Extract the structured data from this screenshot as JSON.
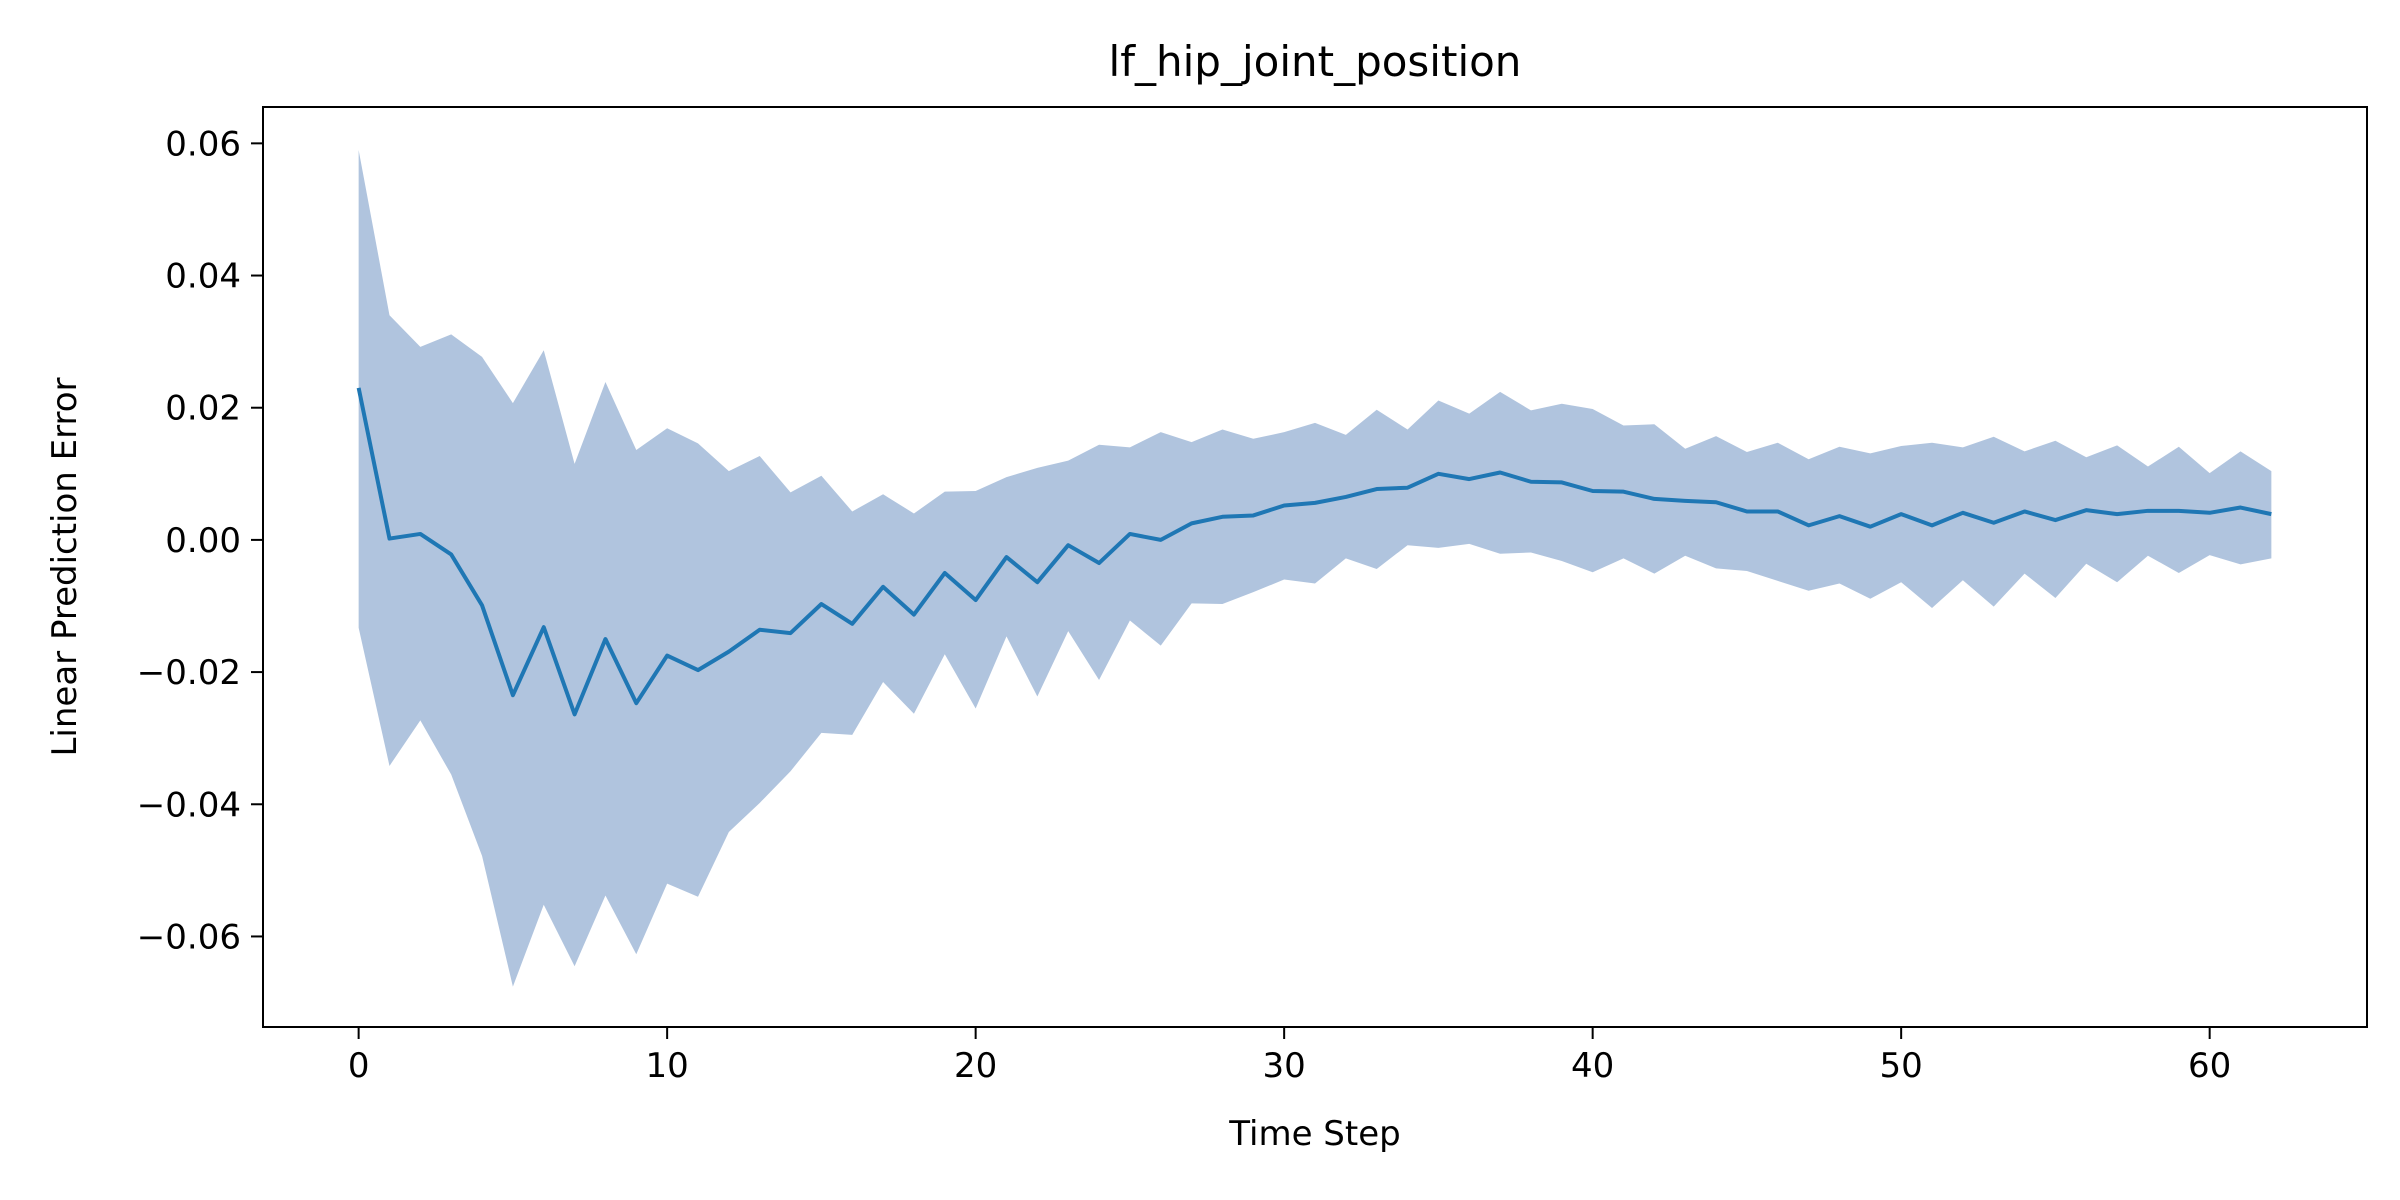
{
  "chart_data": {
    "type": "line",
    "title": "lf_hip_joint_position",
    "xlabel": "Time Step",
    "ylabel": "Linear Prediction Error",
    "xlim": [
      -3.1,
      65.1
    ],
    "ylim": [
      -0.0737,
      0.0655
    ],
    "x_ticks": [
      0,
      10,
      20,
      30,
      40,
      50,
      60
    ],
    "x_tick_labels": [
      "0",
      "10",
      "20",
      "30",
      "40",
      "50",
      "60"
    ],
    "y_ticks": [
      0.06,
      0.04,
      0.02,
      0.0,
      -0.02,
      -0.04,
      -0.06
    ],
    "y_tick_labels": [
      "0.06",
      "0.04",
      "0.02",
      "0.00",
      "−0.02",
      "−0.04",
      "−0.06"
    ],
    "grid": false,
    "line_color": "#1f77b4",
    "band_color": "#b0c4de",
    "series": [
      {
        "x": [
          0,
          1,
          2,
          3,
          4,
          5,
          6,
          7,
          8,
          9,
          10,
          11,
          12,
          13,
          14,
          15,
          16,
          17,
          18,
          19,
          20,
          21,
          22,
          23,
          24,
          25,
          26,
          27,
          28,
          29,
          30,
          31,
          32,
          33,
          34,
          35,
          36,
          37,
          38,
          39,
          40,
          41,
          42,
          43,
          44,
          45,
          46,
          47,
          48,
          49,
          50,
          51,
          52,
          53,
          54,
          55,
          56,
          57,
          58,
          59,
          60,
          61,
          62
        ],
        "mean": [
          0.023,
          0.0002,
          0.0009,
          -0.0022,
          -0.0099,
          -0.0235,
          -0.0132,
          -0.0264,
          -0.015,
          -0.0247,
          -0.0175,
          -0.0197,
          -0.0169,
          -0.0136,
          -0.0141,
          -0.0097,
          -0.0127,
          -0.0071,
          -0.0113,
          -0.005,
          -0.0091,
          -0.0026,
          -0.0064,
          -0.0008,
          -0.0035,
          0.0009,
          0.0,
          0.0025,
          0.0035,
          0.0037,
          0.0052,
          0.0056,
          0.0065,
          0.0077,
          0.0079,
          0.01,
          0.0092,
          0.0102,
          0.0088,
          0.0087,
          0.0074,
          0.0073,
          0.0062,
          0.0059,
          0.0057,
          0.0043,
          0.0043,
          0.0022,
          0.0036,
          0.002,
          0.0039,
          0.0022,
          0.0041,
          0.0026,
          0.0043,
          0.003,
          0.0045,
          0.0039,
          0.0044,
          0.0044,
          0.0041,
          0.0049,
          0.0039
        ],
        "upper": [
          0.059,
          0.034,
          0.0292,
          0.0311,
          0.0277,
          0.0207,
          0.0287,
          0.0115,
          0.0239,
          0.0136,
          0.0169,
          0.0146,
          0.0104,
          0.0127,
          0.0072,
          0.0097,
          0.0043,
          0.0069,
          0.004,
          0.0073,
          0.0074,
          0.0095,
          0.0109,
          0.012,
          0.0144,
          0.014,
          0.0163,
          0.0148,
          0.0167,
          0.0153,
          0.0163,
          0.0177,
          0.0159,
          0.0197,
          0.0167,
          0.0211,
          0.0191,
          0.0224,
          0.0196,
          0.0206,
          0.0198,
          0.0173,
          0.0175,
          0.0138,
          0.0157,
          0.0133,
          0.0147,
          0.0122,
          0.0141,
          0.0131,
          0.0142,
          0.0147,
          0.014,
          0.0156,
          0.0134,
          0.015,
          0.0125,
          0.0143,
          0.0111,
          0.0141,
          0.0101,
          0.0134,
          0.0104
        ],
        "lower": [
          -0.0133,
          -0.0342,
          -0.0273,
          -0.0355,
          -0.0478,
          -0.0676,
          -0.0552,
          -0.0645,
          -0.0538,
          -0.0627,
          -0.052,
          -0.054,
          -0.0442,
          -0.0398,
          -0.035,
          -0.0292,
          -0.0295,
          -0.0215,
          -0.0263,
          -0.0173,
          -0.0255,
          -0.0146,
          -0.0237,
          -0.0138,
          -0.0212,
          -0.0122,
          -0.016,
          -0.0096,
          -0.0097,
          -0.0079,
          -0.006,
          -0.0066,
          -0.0028,
          -0.0044,
          -0.0008,
          -0.0012,
          -0.0006,
          -0.0021,
          -0.0019,
          -0.0032,
          -0.0049,
          -0.0028,
          -0.0051,
          -0.0024,
          -0.0043,
          -0.0047,
          -0.0062,
          -0.0077,
          -0.0066,
          -0.0089,
          -0.0064,
          -0.0103,
          -0.0061,
          -0.0101,
          -0.0051,
          -0.0088,
          -0.0036,
          -0.0064,
          -0.0024,
          -0.005,
          -0.0023,
          -0.0037,
          -0.0028
        ]
      }
    ]
  }
}
